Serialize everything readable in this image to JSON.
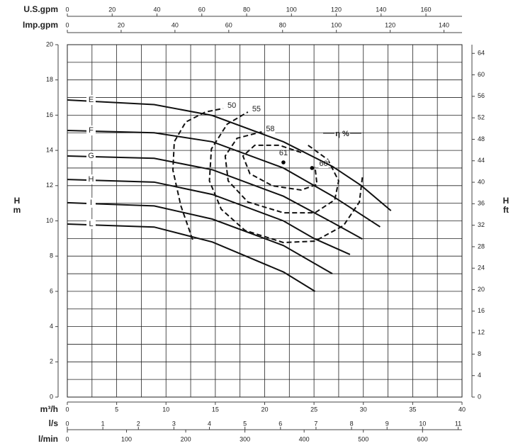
{
  "chart_data": {
    "type": "line",
    "x_label": "m³/h",
    "y_label": "H",
    "y_unit": "m",
    "y2_label": "H",
    "y2_unit": "ft",
    "xlim": [
      0,
      40
    ],
    "xticks": [
      0,
      5,
      10,
      15,
      20,
      25,
      30,
      35,
      40
    ],
    "xgrid": [
      0,
      2.5,
      5,
      7.5,
      10,
      12.5,
      15,
      17.5,
      20,
      22.5,
      25,
      27.5,
      30,
      32.5,
      35,
      37.5,
      40
    ],
    "ylim": [
      0,
      20
    ],
    "yticks": [
      0,
      2,
      4,
      6,
      8,
      10,
      12,
      14,
      16,
      18,
      20
    ],
    "ygrid": [
      0,
      1,
      2,
      3,
      4,
      5,
      6,
      7,
      8,
      9,
      10,
      11,
      12,
      13,
      14,
      15,
      16,
      17,
      18,
      19,
      20
    ],
    "y2lim": [
      0,
      65.62
    ],
    "y2ticks": [
      0,
      4,
      8,
      12,
      16,
      20,
      24,
      28,
      32,
      36,
      40,
      44,
      48,
      52,
      56,
      60,
      64
    ],
    "grid": true,
    "top_axes": [
      {
        "label": "U.S.gpm",
        "lim": [
          0,
          176.1
        ],
        "ticks": [
          0,
          20,
          40,
          60,
          80,
          100,
          120,
          140,
          160
        ]
      },
      {
        "label": "Imp.gpm",
        "lim": [
          0,
          146.7
        ],
        "ticks": [
          0,
          20,
          40,
          60,
          80,
          100,
          120,
          140
        ]
      }
    ],
    "bottom_axes": [
      {
        "label": "l/s",
        "lim": [
          0,
          11.11
        ],
        "ticks": [
          0,
          1,
          2,
          3,
          4,
          5,
          6,
          7,
          8,
          9,
          10,
          11
        ]
      },
      {
        "label": "l/min",
        "lim": [
          0,
          666.7
        ],
        "ticks": [
          0,
          100,
          200,
          300,
          400,
          500,
          600
        ]
      }
    ],
    "series": [
      {
        "name": "E",
        "color": "#111111",
        "x": [
          0,
          8.8,
          14.7,
          21.9,
          26.9,
          29.8,
          32.8
        ],
        "values": [
          16.86,
          16.6,
          15.98,
          14.49,
          13.08,
          12.0,
          10.58
        ]
      },
      {
        "name": "F",
        "color": "#111111",
        "x": [
          0,
          8.8,
          14.7,
          21.9,
          26.9,
          31.7
        ],
        "values": [
          15.13,
          15.0,
          14.49,
          13.0,
          11.4,
          9.66
        ]
      },
      {
        "name": "G",
        "color": "#111111",
        "x": [
          0,
          8.8,
          14.7,
          21.9,
          26.9,
          29.9
        ],
        "values": [
          13.68,
          13.55,
          12.9,
          11.4,
          9.9,
          8.97
        ]
      },
      {
        "name": "H",
        "color": "#111111",
        "x": [
          0,
          8.8,
          14.7,
          21.9,
          25,
          28.65
        ],
        "values": [
          12.35,
          12.2,
          11.5,
          10.0,
          9.0,
          8.09
        ]
      },
      {
        "name": "I",
        "color": "#111111",
        "x": [
          0,
          8.8,
          14.7,
          21.9,
          26.86
        ],
        "values": [
          11.03,
          10.85,
          10.1,
          8.6,
          7.0
        ]
      },
      {
        "name": "L",
        "color": "#111111",
        "x": [
          0,
          8.8,
          14.7,
          21.9,
          25.1
        ],
        "values": [
          9.82,
          9.65,
          8.8,
          7.1,
          6.0
        ]
      }
    ],
    "efficiency_label": "η %",
    "efficiency": [
      {
        "label": "50",
        "x": [
          12.7,
          11.5,
          10.7,
          10.84,
          12.0,
          14.0,
          15.8
        ],
        "y": [
          8.93,
          10.87,
          12.88,
          14.49,
          15.61,
          16.18,
          16.38
        ]
      },
      {
        "label": "55",
        "x": [
          29.9,
          29.6,
          28.0,
          25.1,
          21.9,
          18.0,
          15.6,
          14.4,
          14.6,
          16.2,
          18.3
        ],
        "y": [
          12.47,
          11.07,
          9.74,
          8.85,
          8.77,
          9.46,
          10.66,
          12.27,
          14.08,
          15.49,
          16.18
        ]
      },
      {
        "label": "58",
        "x": [
          24.4,
          26.4,
          27.5,
          27.1,
          25.1,
          21.9,
          18.3,
          16.3,
          16.0,
          17.2,
          19.7
        ],
        "y": [
          14.29,
          13.48,
          12.27,
          11.19,
          10.46,
          10.46,
          11.07,
          12.27,
          13.68,
          14.69,
          15.05
        ]
      },
      {
        "label": "60",
        "x": [
          23.7,
          21.5,
          19.0,
          17.8,
          18.5,
          20.8,
          23.7,
          25.3,
          25.1
        ],
        "y": [
          13.88,
          14.29,
          14.29,
          13.68,
          12.68,
          11.99,
          11.75,
          12.07,
          13.08
        ]
      }
    ],
    "points": [
      {
        "label": "61",
        "x": 21.9,
        "y": 13.32
      },
      {
        "x": 24.8,
        "y": 13.0
      }
    ]
  }
}
